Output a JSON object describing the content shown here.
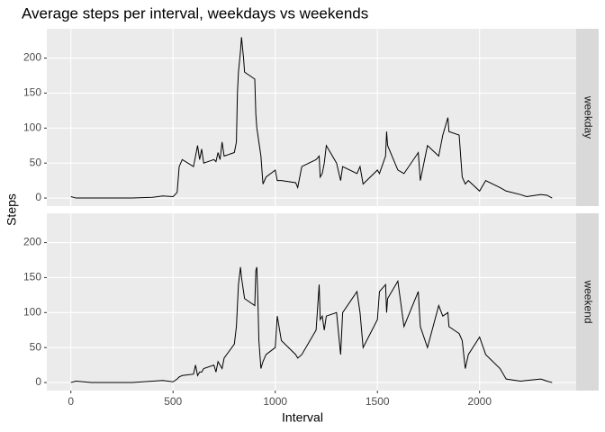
{
  "chart_data": {
    "type": "line",
    "title": "Average steps per interval, weekdays vs weekends",
    "x_label": "Interval",
    "y_label": "Steps",
    "x": [
      0,
      25,
      100,
      200,
      300,
      400,
      450,
      500,
      520,
      530,
      545,
      600,
      610,
      620,
      630,
      640,
      650,
      700,
      710,
      720,
      730,
      740,
      750,
      800,
      810,
      815,
      820,
      830,
      835,
      840,
      845,
      850,
      900,
      905,
      910,
      915,
      920,
      930,
      940,
      955,
      1000,
      1010,
      1030,
      1100,
      1110,
      1130,
      1200,
      1215,
      1220,
      1230,
      1240,
      1250,
      1300,
      1320,
      1330,
      1400,
      1415,
      1430,
      1500,
      1510,
      1540,
      1545,
      1550,
      1600,
      1630,
      1700,
      1710,
      1745,
      1800,
      1820,
      1845,
      1850,
      1900,
      1915,
      1930,
      1945,
      2000,
      2030,
      2100,
      2130,
      2200,
      2230,
      2300,
      2330,
      2355
    ],
    "series": [
      {
        "name": "weekday",
        "color": "#000000",
        "values": [
          2,
          0,
          0,
          0,
          0,
          1,
          3,
          2,
          8,
          45,
          55,
          45,
          60,
          75,
          55,
          70,
          50,
          55,
          52,
          65,
          55,
          80,
          60,
          65,
          80,
          150,
          180,
          210,
          230,
          215,
          200,
          180,
          170,
          120,
          100,
          90,
          80,
          60,
          20,
          30,
          40,
          25,
          25,
          22,
          15,
          45,
          55,
          60,
          30,
          35,
          50,
          75,
          50,
          25,
          45,
          35,
          45,
          20,
          40,
          35,
          60,
          95,
          75,
          40,
          35,
          65,
          25,
          75,
          60,
          90,
          115,
          95,
          90,
          30,
          20,
          25,
          10,
          25,
          15,
          10,
          5,
          2,
          5,
          4,
          0
        ]
      },
      {
        "name": "weekend",
        "color": "#000000",
        "values": [
          0,
          2,
          0,
          0,
          0,
          2,
          3,
          1,
          5,
          8,
          10,
          12,
          25,
          10,
          15,
          15,
          20,
          25,
          15,
          30,
          25,
          20,
          35,
          55,
          80,
          110,
          140,
          165,
          150,
          140,
          130,
          120,
          110,
          160,
          165,
          120,
          60,
          20,
          30,
          40,
          50,
          95,
          60,
          40,
          35,
          40,
          75,
          140,
          90,
          95,
          75,
          95,
          100,
          40,
          100,
          130,
          100,
          50,
          90,
          130,
          140,
          100,
          120,
          145,
          80,
          130,
          80,
          50,
          110,
          95,
          100,
          80,
          70,
          60,
          20,
          40,
          65,
          40,
          20,
          5,
          2,
          3,
          5,
          2,
          0
        ]
      }
    ],
    "xlim": [
      -117.75,
      2472.75
    ],
    "xticks": [
      0,
      500,
      1000,
      1500,
      2000
    ],
    "ylim": [
      -11.5,
      241.9
    ],
    "yticks": [
      0,
      50,
      100,
      150,
      200
    ],
    "grid": true
  }
}
